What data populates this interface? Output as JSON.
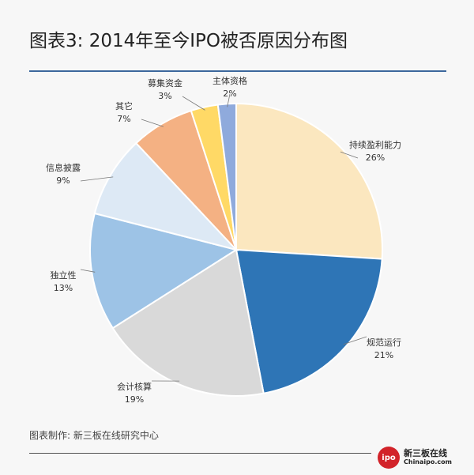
{
  "title": "图表3: 2014年至今IPO被否原因分布图",
  "source": "图表制作: 新三板在线研究中心",
  "logo": {
    "circle_text": "ipo",
    "name_cn": "新三板在线",
    "name_en": "Chinaipo.com"
  },
  "chart_data": {
    "type": "pie",
    "title": "图表3: 2014年至今IPO被否原因分布图",
    "start": "12 o'clock",
    "direction": "clockwise",
    "legend": "none (data labels outside slices)",
    "slices": [
      {
        "label": "持续盈利能力",
        "value": 26,
        "value_label": "26%",
        "color": "#fbe7bf"
      },
      {
        "label": "规范运行",
        "value": 21,
        "value_label": "21%",
        "color": "#2e75b6"
      },
      {
        "label": "会计核算",
        "value": 19,
        "value_label": "19%",
        "color": "#d9d9d9"
      },
      {
        "label": "独立性",
        "value": 13,
        "value_label": "13%",
        "color": "#9dc3e6"
      },
      {
        "label": "信息披露",
        "value": 9,
        "value_label": "9%",
        "color": "#dde9f5"
      },
      {
        "label": "其它",
        "value": 7,
        "value_label": "7%",
        "color": "#f4b183"
      },
      {
        "label": "募集资金",
        "value": 3,
        "value_label": "3%",
        "color": "#ffd966"
      },
      {
        "label": "主体资格",
        "value": 2,
        "value_label": "2%",
        "color": "#8faadc"
      }
    ]
  }
}
